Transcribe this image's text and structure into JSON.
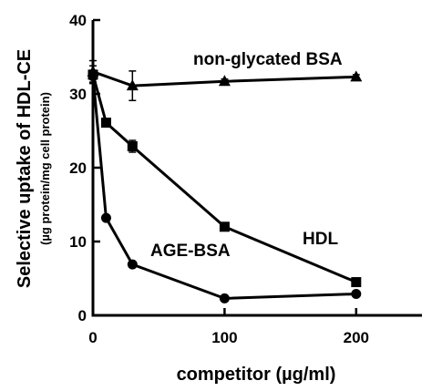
{
  "chart_data": {
    "type": "line",
    "xlabel": "competitor (µg/ml)",
    "ylabel": "Selective uptake of HDL-CE",
    "ylabel_sub": "(µg protein/mg cell protein)",
    "xlim": [
      0,
      250
    ],
    "ylim": [
      0,
      40
    ],
    "x_ticks": [
      0,
      100,
      200
    ],
    "y_ticks": [
      0,
      10,
      20,
      30,
      40
    ],
    "grid": false,
    "series": [
      {
        "name": "non-glycated BSA",
        "marker": "triangle",
        "x": [
          0,
          30,
          100,
          200
        ],
        "y": [
          33.0,
          31.1,
          31.7,
          32.3
        ],
        "err": [
          1.5,
          2.0,
          0.3,
          0.3
        ]
      },
      {
        "name": "HDL",
        "marker": "square",
        "x": [
          0,
          10,
          30,
          100,
          200
        ],
        "y": [
          32.6,
          26.1,
          22.9,
          12.0,
          4.5
        ],
        "err": [
          1.2,
          0.5,
          0.8,
          0.4,
          0.4
        ]
      },
      {
        "name": "AGE-BSA",
        "marker": "circle",
        "x": [
          0,
          10,
          30,
          100,
          200
        ],
        "y": [
          32.4,
          13.2,
          6.9,
          2.3,
          2.9
        ],
        "err": [
          0.8,
          0.3,
          0.3,
          0.3,
          0.3
        ]
      }
    ]
  }
}
